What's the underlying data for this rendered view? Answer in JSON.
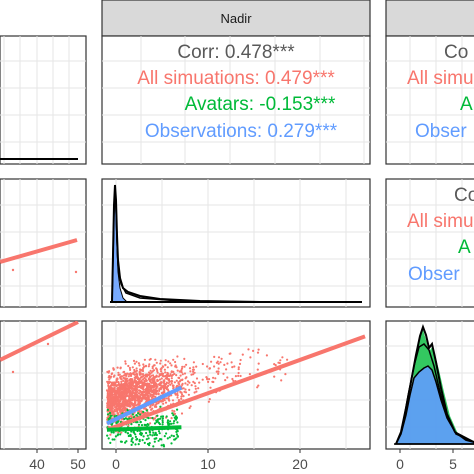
{
  "colors": {
    "panel_bg": "#ffffff",
    "grid": "#e5e5e5",
    "panel_border": "#333333",
    "strip_bg": "#d9d9d9",
    "corr": "#595959",
    "all_simulations": "#F8766D",
    "avatars": "#00BA38",
    "observations": "#619CFF",
    "density_line": "#000000"
  },
  "strip": {
    "nadir": "Nadir"
  },
  "nadir_corr": {
    "corr": "Corr: 0.478***",
    "all": "All simuations: 0.479***",
    "avatars": "Avatars: -0.153***",
    "observations": "Observations: 0.279***"
  },
  "right_corr": {
    "corr": "Co",
    "all": "All simuations",
    "avatars": "A",
    "observations": "Obser"
  },
  "right_corr_mid": {
    "corr": "Co",
    "all": "All simu",
    "avatars": "A",
    "observations": "Obser"
  },
  "x_ticks_left": [
    "40",
    "50"
  ],
  "x_ticks_nadir": [
    "0",
    "10",
    "20"
  ],
  "x_ticks_right": [
    "0",
    "5"
  ],
  "chart_data": {
    "type": "scatter",
    "layout": "pairs-matrix",
    "nadir_axis": {
      "xlim": [
        -0.5,
        26.5
      ],
      "ticks": [
        0,
        10,
        20
      ]
    },
    "right_axis": {
      "ticks": [
        0,
        5
      ]
    },
    "left_axis": {
      "ticks": [
        40,
        50
      ]
    },
    "series": [
      {
        "name": "All simuations",
        "color": "#F8766D"
      },
      {
        "name": "Avatars",
        "color": "#00BA38"
      },
      {
        "name": "Observations",
        "color": "#619CFF"
      }
    ],
    "regression_lines": {
      "all": {
        "x": [
          0,
          26
        ],
        "y": [
          0.15,
          0.88
        ]
      },
      "observations": {
        "x": [
          0,
          7.5
        ],
        "y": [
          0.2,
          0.48
        ]
      },
      "avatars": {
        "x": [
          0,
          7.5
        ],
        "y": [
          0.15,
          0.17
        ]
      }
    }
  }
}
